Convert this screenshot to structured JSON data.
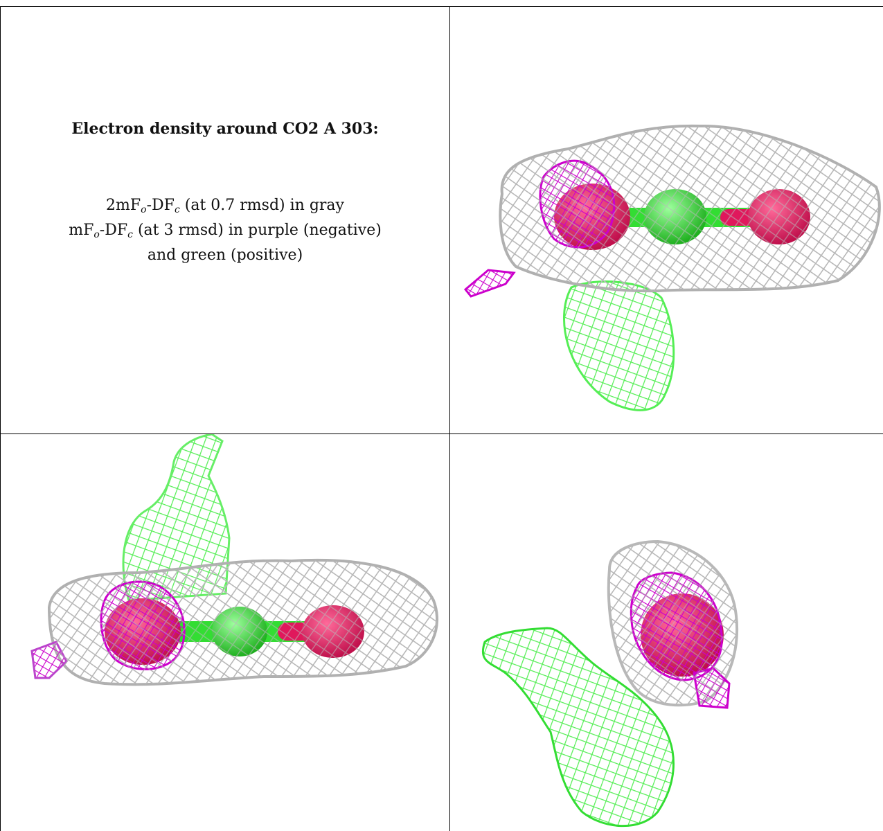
{
  "caption": {
    "title": "Electron density around CO2 A 303:",
    "map1": {
      "prefix": "2mF",
      "sub1": "o",
      "mid": "-DF",
      "sub2": "c",
      "rest": " (at 0.7 rmsd) in gray"
    },
    "map2": {
      "prefix": "mF",
      "sub1": "o",
      "mid": "-DF",
      "sub2": "c",
      "rest": " (at 3 rmsd) in purple (negative)"
    },
    "map2_tail": "and green (positive)"
  },
  "colors": {
    "gray_mesh": "#b8b8b8",
    "negative_mesh": "#cc00cc",
    "positive_mesh": "#44ee44",
    "oxygen": "#e0185c",
    "carbon": "#33dd33"
  },
  "views": [
    "view-1",
    "view-2",
    "view-3"
  ]
}
